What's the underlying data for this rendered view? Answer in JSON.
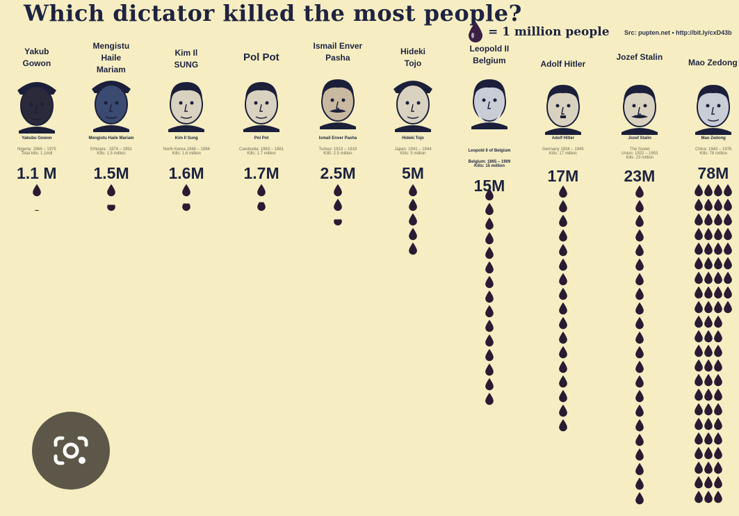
{
  "title": "Which dictator killed the most people?",
  "legend": {
    "text": "= 1 million people",
    "icon": "blood-drop-icon",
    "drop_color": "#2a1b33"
  },
  "source": "Src: pupten.net  •  http://bit.ly/cxD43b",
  "lens_icon": "google-lens-icon",
  "dictators": [
    {
      "name": "Yakub Gowon",
      "caption_name": "Yakubu Gowon",
      "caption_lines": [
        "Nigeria: 1966 – 1975",
        "Total kills: 1.1mill"
      ],
      "total": "1.1 M",
      "millions": 1.1,
      "skin": "#2b2a3a"
    },
    {
      "name": "Mengistu Haile Mariam",
      "caption_name": "Mengistu Haile Mariam",
      "caption_lines": [
        "Ethiopia : 1974 – 1991",
        "Kills: 1.5 million"
      ],
      "total": "1.5M",
      "millions": 1.5,
      "skin": "#3a4a70"
    },
    {
      "name": "Kim Il SUNG",
      "caption_name": "Kim Il Sung",
      "caption_lines": [
        "North Korea 1948 – 1994",
        "Kills: 1.6 million"
      ],
      "total": "1.6M",
      "millions": 1.6,
      "skin": "#d9d2c0"
    },
    {
      "name": "Pol Pot",
      "caption_name": "Pol Pot",
      "caption_lines": [
        "Cambodia: 1963 – 1981",
        "Kills: 1.7 million"
      ],
      "total": "1.7M",
      "millions": 1.7,
      "skin": "#d9d2c0"
    },
    {
      "name": "Ismail Enver Pasha",
      "caption_name": "Ismail Enver Pasha",
      "caption_lines": [
        "Turkey: 1913 – 1919",
        "Kills: 2.5 million"
      ],
      "total": "2.5M",
      "millions": 2.5,
      "skin": "#c9b9a0"
    },
    {
      "name": "Hideki Tojo",
      "caption_name": "Hideki Tojo",
      "caption_lines": [
        "Japan: 1941 – 1944",
        "Kills: 5 million"
      ],
      "total": "5M",
      "millions": 5,
      "skin": "#d9d2c0"
    },
    {
      "name": "Leopold II Belgium",
      "caption_name": "Leopold II of Belgium",
      "caption_lines": [
        "Belgium: 1865 – 1909",
        "Kills: 15 million"
      ],
      "total": "15M",
      "millions": 15,
      "skin": "#c9cdd6"
    },
    {
      "name": "Adolf Hitler",
      "caption_name": "Adolf Hitler",
      "caption_lines": [
        "Germany 1934 – 1945",
        "Kills: 17 million"
      ],
      "total": "17M",
      "millions": 17,
      "skin": "#d9d2c0"
    },
    {
      "name": "Jozef Stalin",
      "caption_name": "Jozef Stalin",
      "caption_lines": [
        "The Soviet",
        "Union: 1922 – 1953",
        "Kills: 23 million"
      ],
      "total": "23M",
      "millions": 23,
      "skin": "#d9d2c0"
    },
    {
      "name": "Mao Zedong",
      "caption_name": "Mao Zedong",
      "caption_lines": [
        "China: 1943 – 1976",
        "Kills: 78 million"
      ],
      "total": "78M",
      "millions": 78,
      "skin": "#c9cdd6"
    }
  ]
}
